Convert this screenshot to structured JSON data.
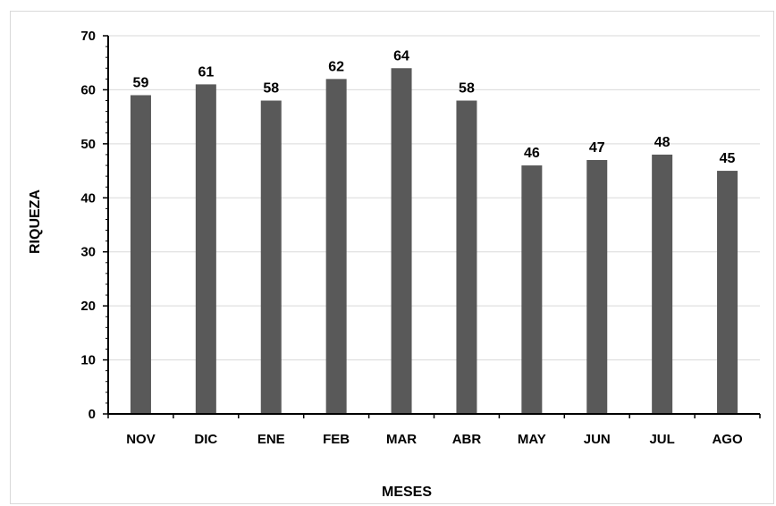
{
  "chart_data": {
    "type": "bar",
    "categories": [
      "NOV",
      "DIC",
      "ENE",
      "FEB",
      "MAR",
      "ABR",
      "MAY",
      "JUN",
      "JUL",
      "AGO"
    ],
    "values": [
      59,
      61,
      58,
      62,
      64,
      58,
      46,
      47,
      48,
      45
    ],
    "xlabel": "MESES",
    "ylabel": "RIQUEZA",
    "ylim": [
      0,
      70
    ],
    "yticks": [
      "0",
      "10",
      "20",
      "30",
      "40",
      "50",
      "60",
      "70"
    ],
    "grid": true,
    "bar_color": "#595959",
    "grid_color": "#d9d9d9"
  }
}
